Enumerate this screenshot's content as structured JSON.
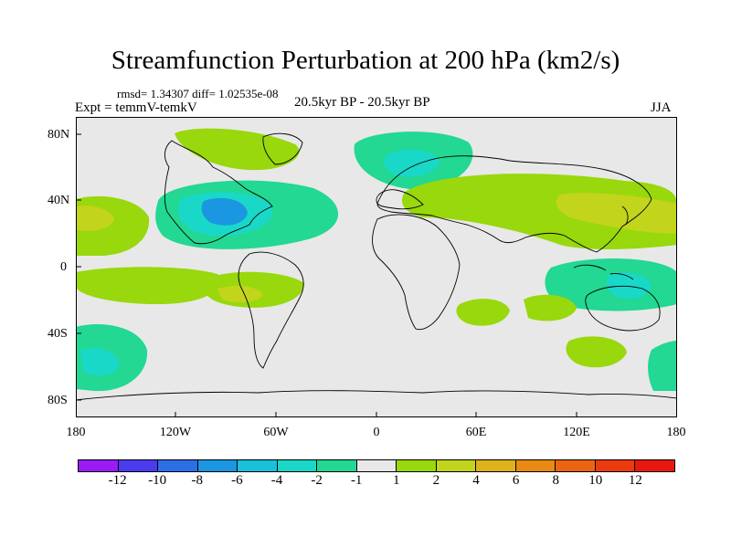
{
  "title": "Streamfunction Perturbation at 200 hPa (km2/s)",
  "stats": "rmsd= 1.34307 diff= 1.02535e-08",
  "expt": "Expt = temmV-temkV",
  "period": "20.5kyr BP - 20.5kyr BP",
  "season": "JJA",
  "axes": {
    "y_labels": [
      "80N",
      "40N",
      "0",
      "40S",
      "80S"
    ],
    "x_labels": [
      "180",
      "120W",
      "60W",
      "0",
      "60E",
      "120E",
      "180"
    ]
  },
  "colorbar": {
    "labels": [
      "-12",
      "-10",
      "-8",
      "-6",
      "-4",
      "-2",
      "-1",
      "1",
      "2",
      "4",
      "6",
      "8",
      "10",
      "12"
    ],
    "colors": [
      "#9a1bf5",
      "#4a3bee",
      "#2d6fe6",
      "#1a97e0",
      "#19c1dd",
      "#19d8c8",
      "#22d893",
      "#e8e8e8",
      "#98d80c",
      "#c2d41c",
      "#dfb21a",
      "#e98a12",
      "#ec6410",
      "#ea3a0e",
      "#e8180e"
    ]
  }
}
